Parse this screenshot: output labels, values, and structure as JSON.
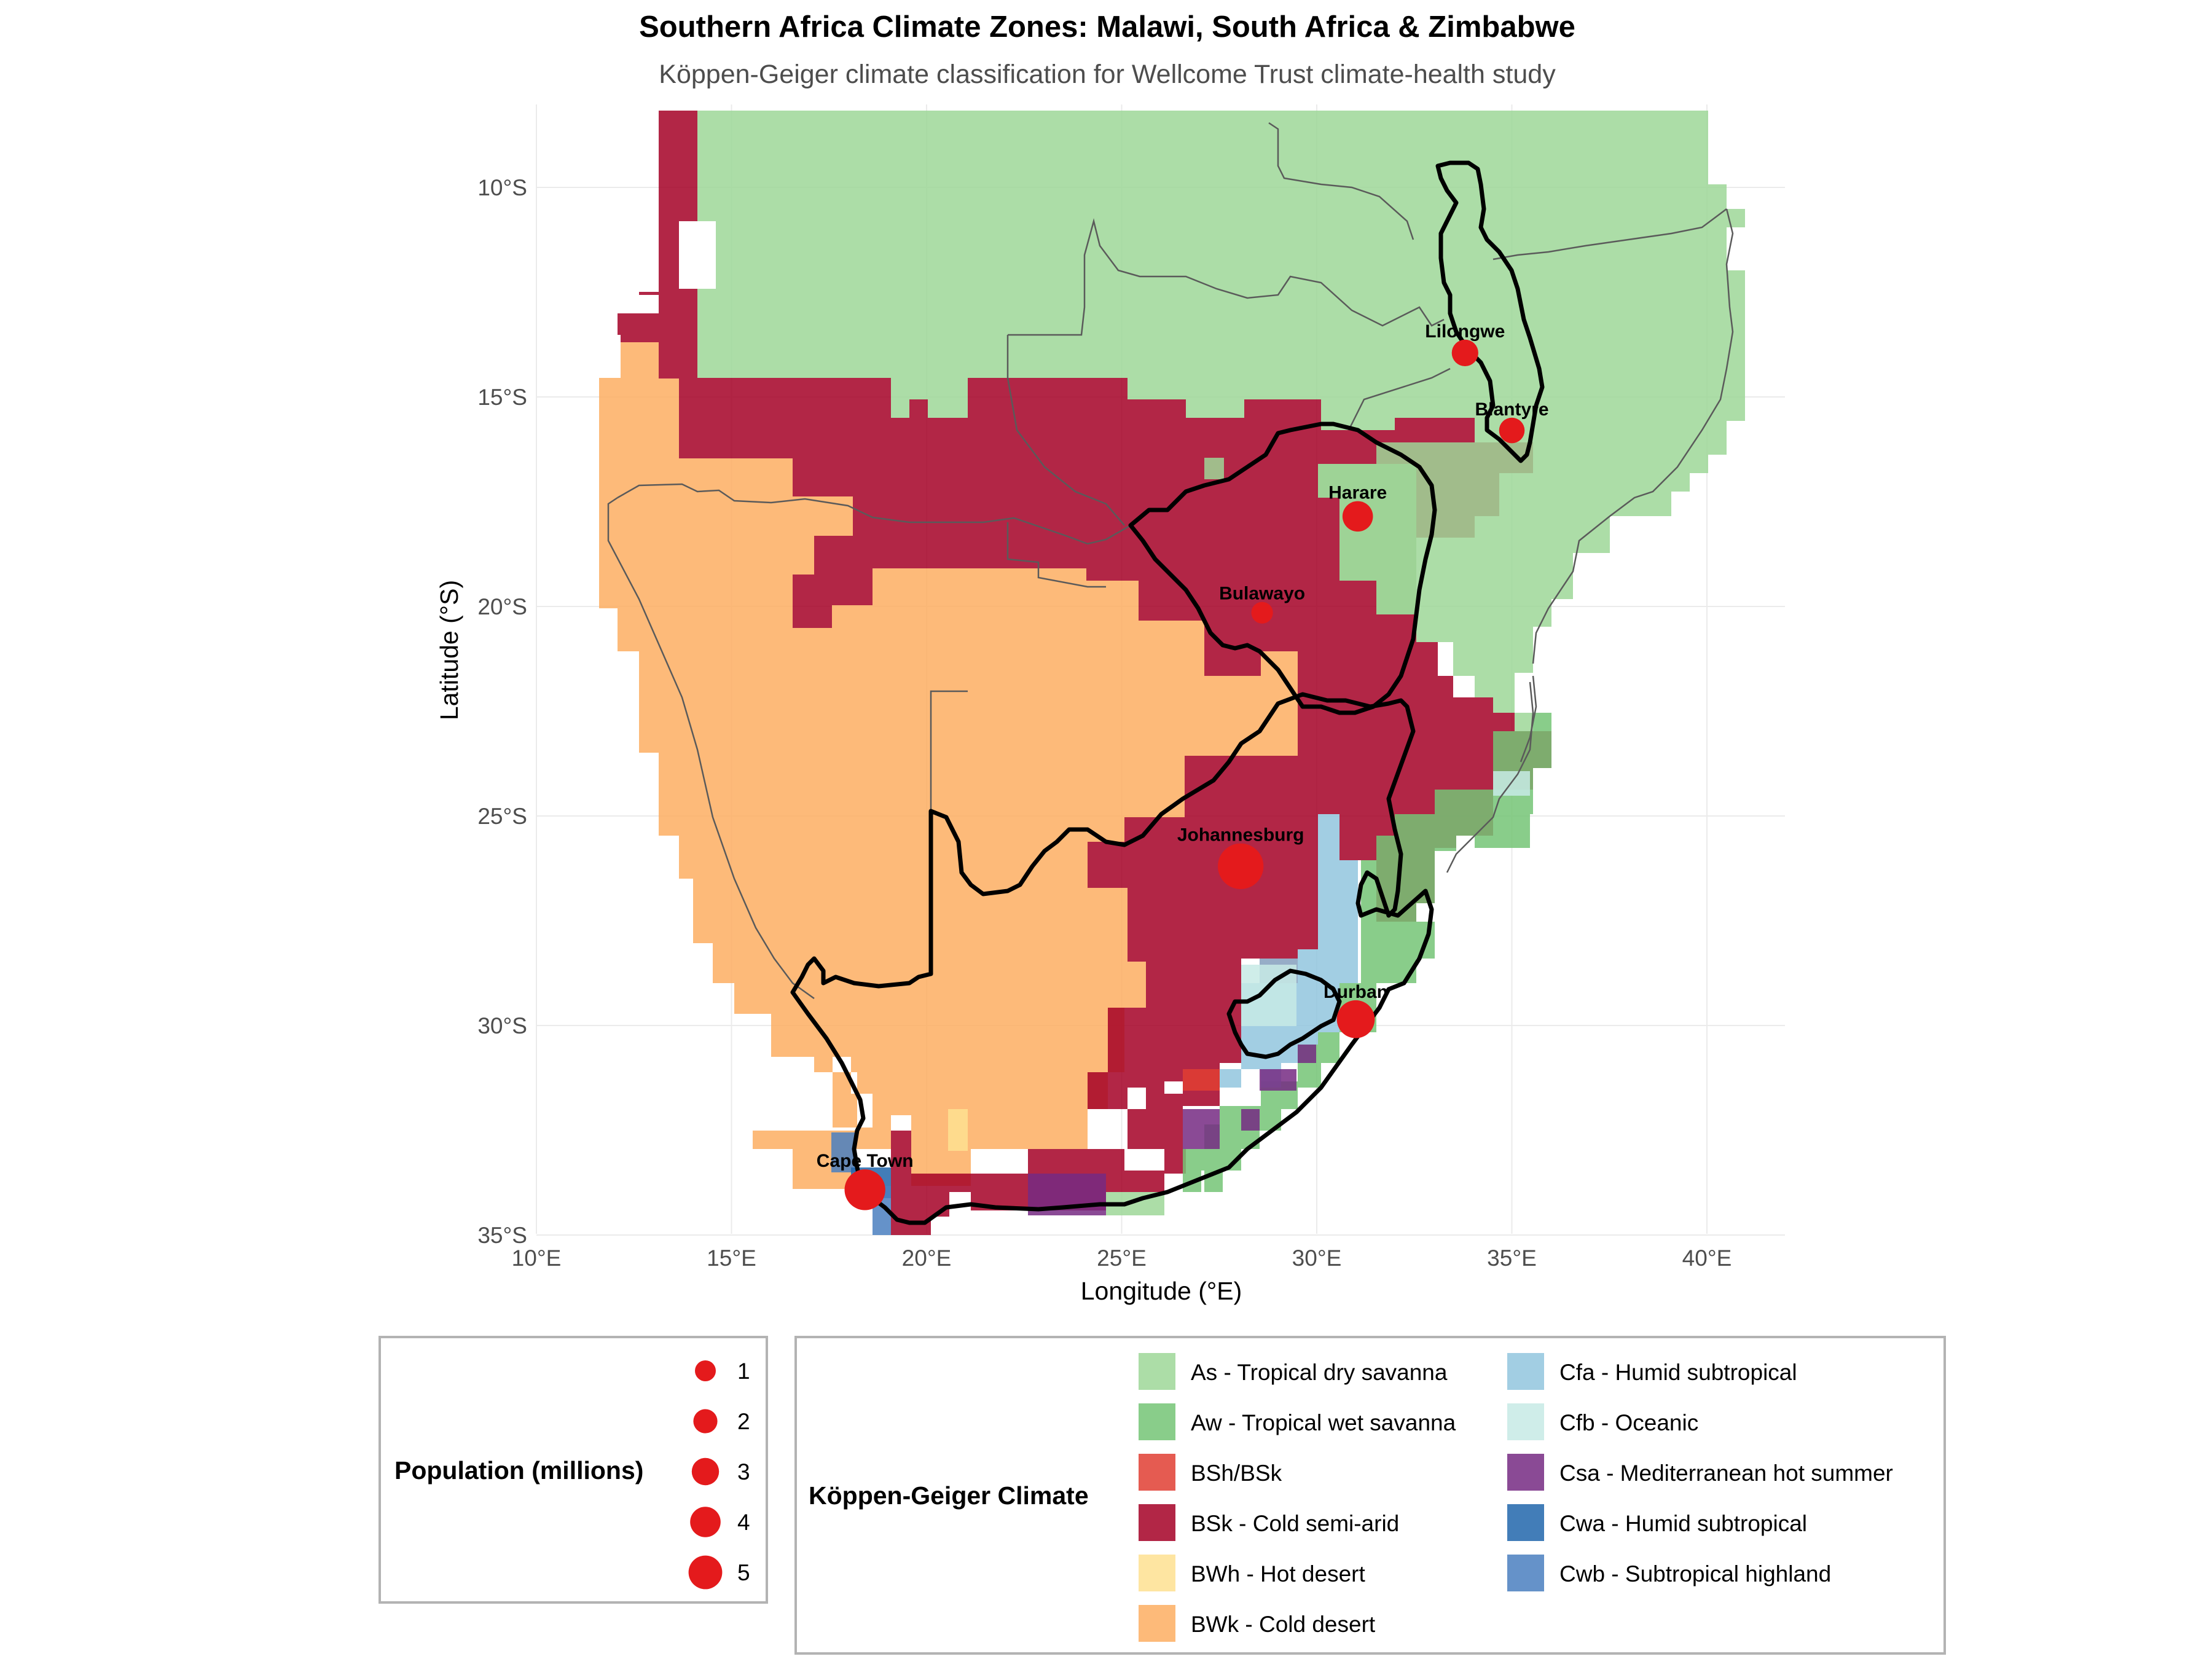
{
  "title": "Southern Africa Climate Zones: Malawi, South Africa & Zimbabwe",
  "subtitle": "Köppen-Geiger climate classification for Wellcome Trust climate-health study",
  "x_axis": {
    "label": "Longitude (°E)",
    "ticks": [
      {
        "value": 10,
        "label": "10°E"
      },
      {
        "value": 15,
        "label": "15°E"
      },
      {
        "value": 20,
        "label": "20°E"
      },
      {
        "value": 25,
        "label": "25°E"
      },
      {
        "value": 30,
        "label": "30°E"
      },
      {
        "value": 35,
        "label": "35°E"
      },
      {
        "value": 40,
        "label": "40°E"
      }
    ],
    "range": [
      10,
      42
    ]
  },
  "y_axis": {
    "label": "Latitude (°S)",
    "ticks": [
      {
        "value": -10,
        "label": "10°S"
      },
      {
        "value": -15,
        "label": "15°S"
      },
      {
        "value": -20,
        "label": "20°S"
      },
      {
        "value": -25,
        "label": "25°S"
      },
      {
        "value": -30,
        "label": "30°S"
      },
      {
        "value": -35,
        "label": "35°S"
      }
    ],
    "range": [
      -35,
      -8
    ]
  },
  "colors": {
    "As": "#9ed798",
    "Aw": "#74c476",
    "BShBSk": "#e13e33",
    "BSk": "#a50026",
    "BWh": "#fee090",
    "BWk": "#fdae61",
    "Cfa": "#92c5de",
    "Cfb": "#c7eae5",
    "Csa": "#762a83",
    "Cwa": "#2166ac",
    "Cwb": "#4a7fbf",
    "city": "#e41a1c"
  },
  "cities": [
    {
      "name": "Lilongwe",
      "lon": 33.8,
      "lat": -13.95,
      "pop": 1.2
    },
    {
      "name": "Blantyre",
      "lon": 35.0,
      "lat": -15.8,
      "pop": 1.1
    },
    {
      "name": "Harare",
      "lon": 31.05,
      "lat": -17.85,
      "pop": 1.6
    },
    {
      "name": "Bulawayo",
      "lon": 28.6,
      "lat": -20.15,
      "pop": 0.7
    },
    {
      "name": "Johannesburg",
      "lon": 28.05,
      "lat": -26.2,
      "pop": 5.8
    },
    {
      "name": "Durban",
      "lon": 31.0,
      "lat": -29.85,
      "pop": 3.9
    },
    {
      "name": "Cape Town",
      "lon": 18.42,
      "lat": -33.92,
      "pop": 4.6
    }
  ],
  "population_legend": {
    "title": "Population (millions)",
    "entries": [
      {
        "label": "1",
        "value": 1
      },
      {
        "label": "2",
        "value": 2
      },
      {
        "label": "3",
        "value": 3
      },
      {
        "label": "4",
        "value": 4
      },
      {
        "label": "5",
        "value": 5
      }
    ]
  },
  "climate_legend": {
    "title": "Köppen-Geiger Climate",
    "entries": [
      {
        "key": "As",
        "label": "As - Tropical dry savanna"
      },
      {
        "key": "Aw",
        "label": "Aw - Tropical wet savanna"
      },
      {
        "key": "BShBSk",
        "label": "BSh/BSk"
      },
      {
        "key": "BSk",
        "label": "BSk - Cold semi-arid"
      },
      {
        "key": "BWh",
        "label": "BWh - Hot desert"
      },
      {
        "key": "BWk",
        "label": "BWk - Cold desert"
      },
      {
        "key": "Cfa",
        "label": "Cfa - Humid subtropical"
      },
      {
        "key": "Cfb",
        "label": "Cfb - Oceanic"
      },
      {
        "key": "Csa",
        "label": "Csa - Mediterranean hot summer"
      },
      {
        "key": "Cwa",
        "label": "Cwa - Humid subtropical"
      },
      {
        "key": "Cwb",
        "label": "Cwb - Subtropical highland"
      }
    ]
  }
}
